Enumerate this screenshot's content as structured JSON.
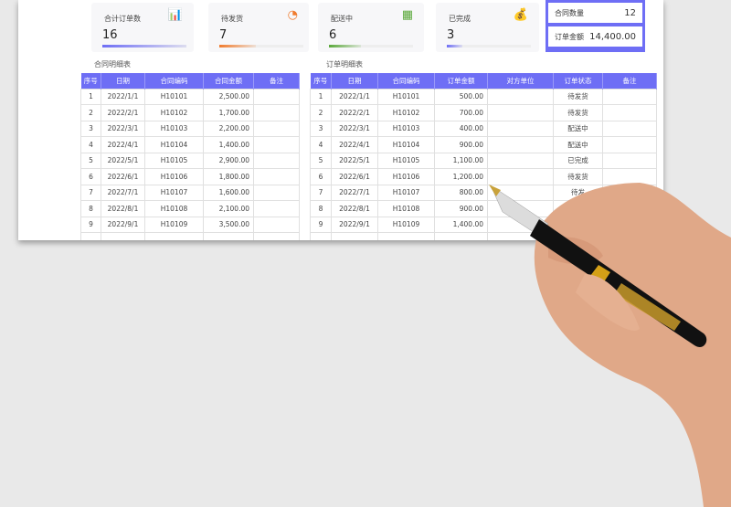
{
  "cards": [
    {
      "label": "合计订单数",
      "value": "16",
      "color": "#6e6ef5",
      "progress": 1.0,
      "icon": "presentation-icon"
    },
    {
      "label": "待发货",
      "value": "7",
      "color": "#f07b2d",
      "progress": 0.44,
      "icon": "pie-chart-icon"
    },
    {
      "label": "配送中",
      "value": "6",
      "color": "#5aa83a",
      "progress": 0.38,
      "icon": "calculator-icon"
    },
    {
      "label": "已完成",
      "value": "3",
      "color": "#6e6ef5",
      "progress": 0.19,
      "icon": "money-bag-icon"
    }
  ],
  "summary": {
    "contract_count_label": "合同数量",
    "contract_count": "12",
    "order_amount_label": "订单金额",
    "order_amount": "14,400.00"
  },
  "contract_table": {
    "title": "合同明细表",
    "headers": [
      "序号",
      "日期",
      "合同编码",
      "合同金额",
      "备注"
    ],
    "rows": [
      [
        "1",
        "2022/1/1",
        "H10101",
        "2,500.00",
        ""
      ],
      [
        "2",
        "2022/2/1",
        "H10102",
        "1,700.00",
        ""
      ],
      [
        "3",
        "2022/3/1",
        "H10103",
        "2,200.00",
        ""
      ],
      [
        "4",
        "2022/4/1",
        "H10104",
        "1,400.00",
        ""
      ],
      [
        "5",
        "2022/5/1",
        "H10105",
        "2,900.00",
        ""
      ],
      [
        "6",
        "2022/6/1",
        "H10106",
        "1,800.00",
        ""
      ],
      [
        "7",
        "2022/7/1",
        "H10107",
        "1,600.00",
        ""
      ],
      [
        "8",
        "2022/8/1",
        "H10108",
        "2,100.00",
        ""
      ],
      [
        "9",
        "2022/9/1",
        "H10109",
        "3,500.00",
        ""
      ]
    ]
  },
  "order_table": {
    "title": "订单明细表",
    "headers": [
      "序号",
      "日期",
      "合同编码",
      "订单金额",
      "对方单位",
      "订单状态",
      "备注"
    ],
    "rows": [
      [
        "1",
        "2022/1/1",
        "H10101",
        "500.00",
        "",
        "待发货",
        ""
      ],
      [
        "2",
        "2022/2/1",
        "H10102",
        "700.00",
        "",
        "待发货",
        ""
      ],
      [
        "3",
        "2022/3/1",
        "H10103",
        "400.00",
        "",
        "配送中",
        ""
      ],
      [
        "4",
        "2022/4/1",
        "H10104",
        "900.00",
        "",
        "配送中",
        ""
      ],
      [
        "5",
        "2022/5/1",
        "H10105",
        "1,100.00",
        "",
        "已完成",
        ""
      ],
      [
        "6",
        "2022/6/1",
        "H10106",
        "1,200.00",
        "",
        "待发货",
        ""
      ],
      [
        "7",
        "2022/7/1",
        "H10107",
        "800.00",
        "",
        "待发",
        ""
      ],
      [
        "8",
        "2022/8/1",
        "H10108",
        "900.00",
        "",
        "",
        ""
      ],
      [
        "9",
        "2022/9/1",
        "H10109",
        "1,400.00",
        "",
        "",
        ""
      ]
    ]
  }
}
